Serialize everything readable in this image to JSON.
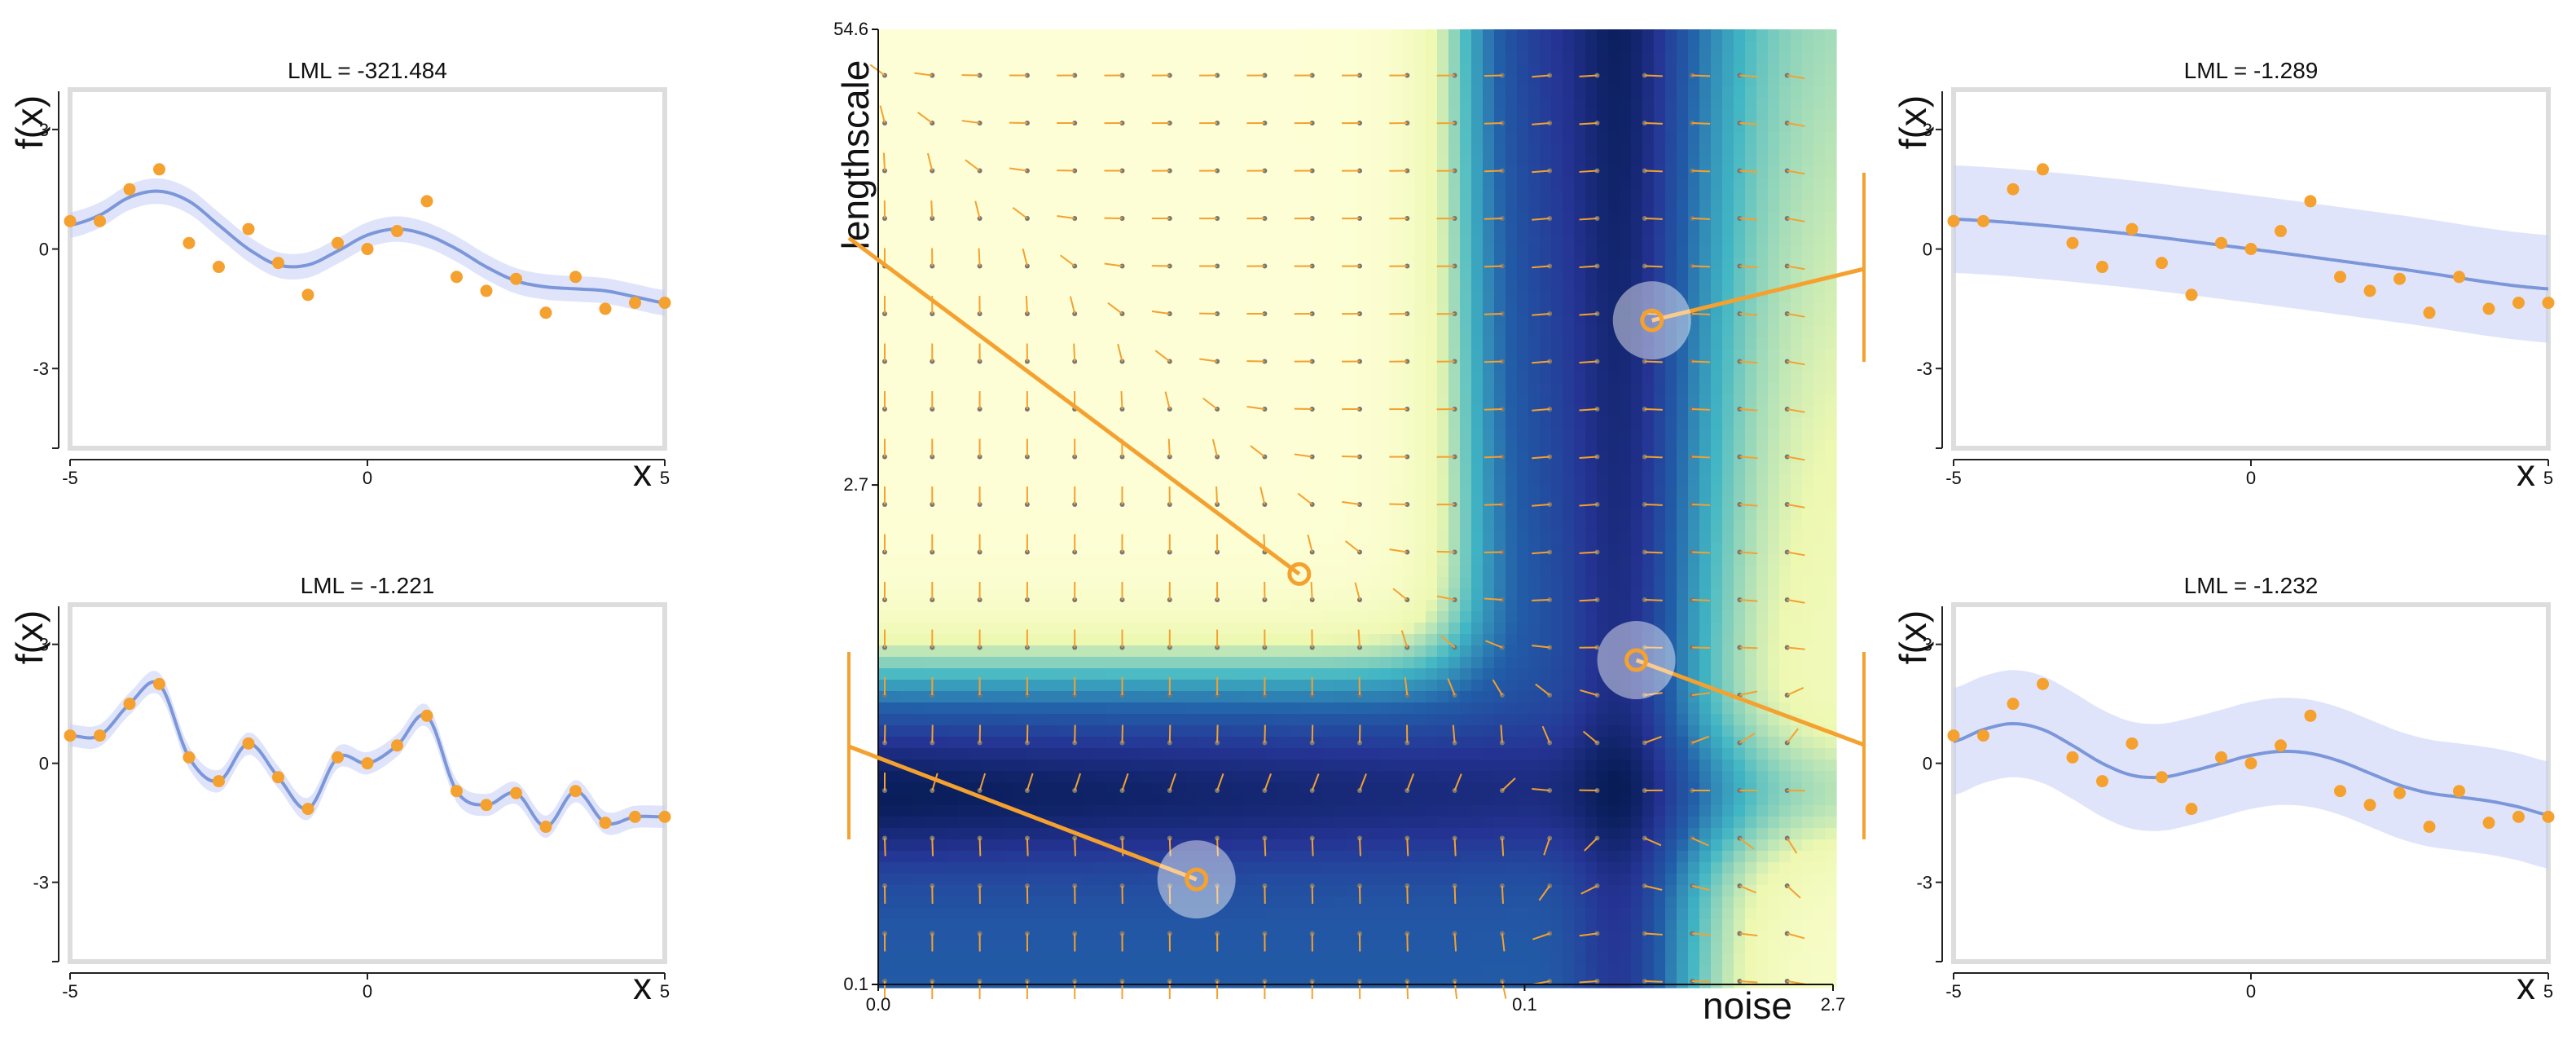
{
  "chart_data": [
    {
      "panel": "top-left",
      "type": "line",
      "title": "LML = -321.484",
      "xlabel": "x",
      "ylabel": "f(x)",
      "xlim": [
        -5,
        5
      ],
      "ylim": [
        -5,
        4
      ],
      "xticks": [
        "-5",
        "0",
        "5"
      ],
      "yticks": [
        "3",
        "0",
        "-3"
      ],
      "band": "narrow",
      "series": [
        {
          "role": "mean",
          "x": [
            -5,
            -4.5,
            -4,
            -3.5,
            -3,
            -2.5,
            -2,
            -1.5,
            -1,
            -0.5,
            0,
            0.5,
            1,
            1.5,
            2,
            2.5,
            3,
            3.5,
            4,
            4.5,
            5
          ],
          "y": [
            0.6,
            0.85,
            1.3,
            1.45,
            1.2,
            0.6,
            0.0,
            -0.4,
            -0.4,
            -0.05,
            0.35,
            0.5,
            0.35,
            0.0,
            -0.45,
            -0.8,
            -0.95,
            -1.0,
            -1.05,
            -1.2,
            -1.35
          ]
        },
        {
          "role": "observations",
          "x": [
            -5,
            -4.5,
            -4,
            -3.5,
            -3,
            -2.5,
            -2,
            -1.5,
            -1,
            -0.5,
            0,
            0.5,
            1,
            1.5,
            2,
            2.5,
            3,
            3.5,
            4,
            4.5,
            5
          ],
          "y": [
            0.7,
            0.7,
            1.5,
            2.0,
            0.15,
            -0.45,
            0.5,
            -0.35,
            -1.15,
            0.15,
            0.0,
            0.45,
            1.2,
            -0.7,
            -1.05,
            -0.75,
            -1.6,
            -0.7,
            -1.5,
            -1.35,
            -1.35
          ]
        }
      ]
    },
    {
      "panel": "bottom-left",
      "type": "line",
      "title": "LML = -1.221",
      "xlabel": "x",
      "ylabel": "f(x)",
      "xlim": [
        -5,
        5
      ],
      "ylim": [
        -5,
        4
      ],
      "xticks": [
        "-5",
        "0",
        "5"
      ],
      "yticks": [
        "3",
        "0",
        "-3"
      ],
      "band": "tight",
      "series": [
        {
          "role": "mean",
          "x": [
            -5,
            -4.5,
            -4,
            -3.5,
            -3,
            -2.5,
            -2,
            -1.5,
            -1,
            -0.5,
            0,
            0.5,
            1,
            1.5,
            2,
            2.5,
            3,
            3.5,
            4,
            4.5,
            5
          ],
          "y": [
            0.7,
            0.7,
            1.5,
            2.0,
            0.15,
            -0.45,
            0.5,
            -0.35,
            -1.15,
            0.15,
            0.0,
            0.45,
            1.2,
            -0.7,
            -1.05,
            -0.75,
            -1.6,
            -0.7,
            -1.5,
            -1.35,
            -1.35
          ]
        },
        {
          "role": "observations",
          "x": [
            -5,
            -4.5,
            -4,
            -3.5,
            -3,
            -2.5,
            -2,
            -1.5,
            -1,
            -0.5,
            0,
            0.5,
            1,
            1.5,
            2,
            2.5,
            3,
            3.5,
            4,
            4.5,
            5
          ],
          "y": [
            0.7,
            0.7,
            1.5,
            2.0,
            0.15,
            -0.45,
            0.5,
            -0.35,
            -1.15,
            0.15,
            0.0,
            0.45,
            1.2,
            -0.7,
            -1.05,
            -0.75,
            -1.6,
            -0.7,
            -1.5,
            -1.35,
            -1.35
          ]
        }
      ]
    },
    {
      "panel": "top-right",
      "type": "line",
      "title": "LML = -1.289",
      "xlabel": "x",
      "ylabel": "f(x)",
      "xlim": [
        -5,
        5
      ],
      "ylim": [
        -5,
        4
      ],
      "xticks": [
        "-5",
        "0",
        "5"
      ],
      "yticks": [
        "3",
        "0",
        "-3"
      ],
      "band": "wide",
      "series": [
        {
          "role": "mean",
          "x": [
            -5,
            -2.5,
            0,
            2.5,
            5
          ],
          "y": [
            0.75,
            0.45,
            0.0,
            -0.5,
            -1.0
          ]
        },
        {
          "role": "observations",
          "x": [
            -5,
            -4.5,
            -4,
            -3.5,
            -3,
            -2.5,
            -2,
            -1.5,
            -1,
            -0.5,
            0,
            0.5,
            1,
            1.5,
            2,
            2.5,
            3,
            3.5,
            4,
            4.5,
            5
          ],
          "y": [
            0.7,
            0.7,
            1.5,
            2.0,
            0.15,
            -0.45,
            0.5,
            -0.35,
            -1.15,
            0.15,
            0.0,
            0.45,
            1.2,
            -0.7,
            -1.05,
            -0.75,
            -1.6,
            -0.7,
            -1.5,
            -1.35,
            -1.35
          ]
        }
      ]
    },
    {
      "panel": "bottom-right",
      "type": "line",
      "title": "LML = -1.232",
      "xlabel": "x",
      "ylabel": "f(x)",
      "xlim": [
        -5,
        5
      ],
      "ylim": [
        -5,
        4
      ],
      "xticks": [
        "-5",
        "0",
        "5"
      ],
      "yticks": [
        "3",
        "0",
        "-3"
      ],
      "band": "wide",
      "series": [
        {
          "role": "mean",
          "x": [
            -5,
            -4.5,
            -4,
            -3.5,
            -3,
            -2.5,
            -2,
            -1.5,
            -1,
            -0.5,
            0,
            0.5,
            1,
            1.5,
            2,
            2.5,
            3,
            3.5,
            4,
            4.5,
            5
          ],
          "y": [
            0.55,
            0.85,
            1.0,
            0.85,
            0.45,
            0.0,
            -0.3,
            -0.35,
            -0.2,
            0.0,
            0.2,
            0.3,
            0.25,
            0.05,
            -0.25,
            -0.55,
            -0.75,
            -0.85,
            -0.95,
            -1.1,
            -1.3
          ]
        },
        {
          "role": "observations",
          "x": [
            -5,
            -4.5,
            -4,
            -3.5,
            -3,
            -2.5,
            -2,
            -1.5,
            -1,
            -0.5,
            0,
            0.5,
            1,
            1.5,
            2,
            2.5,
            3,
            3.5,
            4,
            4.5,
            5
          ],
          "y": [
            0.7,
            0.7,
            1.5,
            2.0,
            0.15,
            -0.45,
            0.5,
            -0.35,
            -1.15,
            0.15,
            0.0,
            0.45,
            1.2,
            -0.7,
            -1.05,
            -0.75,
            -1.6,
            -0.7,
            -1.5,
            -1.35,
            -1.35
          ]
        }
      ]
    },
    {
      "panel": "center",
      "type": "heatmap",
      "xlabel": "noise",
      "ylabel": "lengthscale",
      "xscale": "log",
      "yscale": "log",
      "xlim": [
        0.0,
        2.7
      ],
      "ylim": [
        0.1,
        54.6
      ],
      "xticks": [
        "0.0",
        "0.1",
        "2.7"
      ],
      "yticks": [
        "54.6",
        "2.7",
        "0.1"
      ],
      "colormap": [
        "#ffffd9",
        "#edf8b1",
        "#41b6c4",
        "#225ea8",
        "#253494",
        "#081d58"
      ],
      "points": [
        {
          "noise": 0.009,
          "lengthscale": 1.5,
          "label": "LML = -321.484",
          "highlight": false
        },
        {
          "noise": 0.003,
          "lengthscale": 0.2,
          "label": "LML = -1.221",
          "highlight": true
        },
        {
          "noise": 0.39,
          "lengthscale": 8.0,
          "label": "LML = -1.289",
          "highlight": true
        },
        {
          "noise": 0.33,
          "lengthscale": 0.85,
          "label": "LML = -1.232",
          "highlight": true
        }
      ]
    }
  ]
}
